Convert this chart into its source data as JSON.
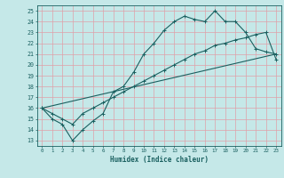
{
  "xlabel": "Humidex (Indice chaleur)",
  "xlim": [
    -0.5,
    23.5
  ],
  "ylim": [
    12.5,
    25.5
  ],
  "xticks": [
    0,
    1,
    2,
    3,
    4,
    5,
    6,
    7,
    8,
    9,
    10,
    11,
    12,
    13,
    14,
    15,
    16,
    17,
    18,
    19,
    20,
    21,
    22,
    23
  ],
  "yticks": [
    13,
    14,
    15,
    16,
    17,
    18,
    19,
    20,
    21,
    22,
    23,
    24,
    25
  ],
  "bg_color": "#c5e8e8",
  "grid_color": "#e0a0a8",
  "line_color": "#1a6060",
  "line1_x": [
    0,
    1,
    2,
    3,
    4,
    5,
    6,
    7,
    8,
    9,
    10,
    11,
    12,
    13,
    14,
    15,
    16,
    17,
    18,
    19,
    20,
    21,
    22,
    23
  ],
  "line1_y": [
    16,
    15,
    14.5,
    13,
    14,
    14.8,
    15.5,
    17.5,
    18,
    19.3,
    21,
    22,
    23.2,
    24,
    24.5,
    24.2,
    24,
    25,
    24,
    24,
    23,
    21.5,
    21.2,
    21
  ],
  "line2_x": [
    0,
    1,
    2,
    3,
    4,
    5,
    6,
    7,
    8,
    9,
    10,
    11,
    12,
    13,
    14,
    15,
    16,
    17,
    18,
    19,
    20,
    21,
    22,
    23
  ],
  "line2_y": [
    16,
    15.5,
    15,
    14.5,
    15.5,
    16,
    16.5,
    17,
    17.5,
    18,
    18.5,
    19,
    19.5,
    20,
    20.5,
    21,
    21.3,
    21.8,
    22,
    22.3,
    22.5,
    22.8,
    23,
    20.5
  ],
  "line3_x": [
    0,
    23
  ],
  "line3_y": [
    16,
    21
  ]
}
